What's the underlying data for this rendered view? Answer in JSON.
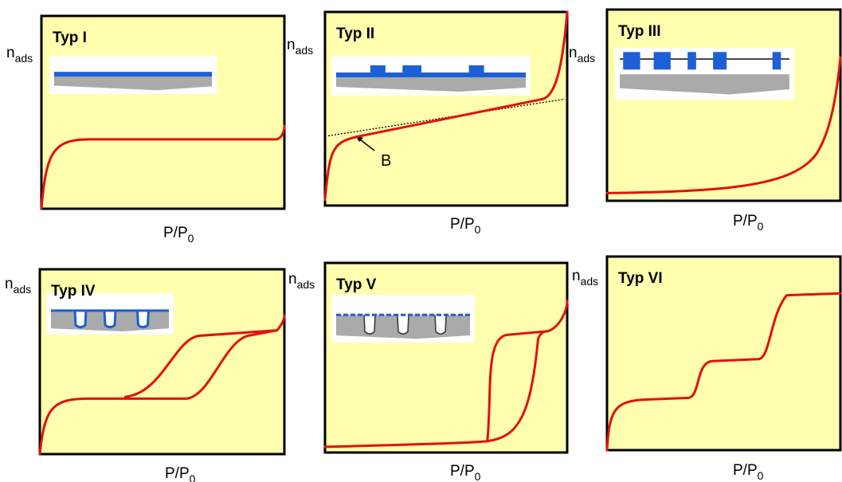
{
  "panels": [
    {
      "title": "Typ I",
      "y_label": "n",
      "y_label_sub": "ads",
      "x_label": "P/P",
      "x_label_sub": "0"
    },
    {
      "title": "Typ II",
      "y_label": "n",
      "y_label_sub": "ads",
      "x_label": "P/P",
      "x_label_sub": "0",
      "annotation": "B"
    },
    {
      "title": "Typ III",
      "y_label": "n",
      "y_label_sub": "ads",
      "x_label": "P/P",
      "x_label_sub": "0"
    },
    {
      "title": "Typ IV",
      "y_label": "n",
      "y_label_sub": "ads",
      "x_label": "P/P",
      "x_label_sub": "0"
    },
    {
      "title": "Typ V",
      "y_label": "n",
      "y_label_sub": "ads",
      "x_label": "P/P",
      "x_label_sub": "0"
    },
    {
      "title": "Typ VI",
      "y_label": "n",
      "y_label_sub": "ads",
      "x_label": "P/P",
      "x_label_sub": "0"
    }
  ]
}
